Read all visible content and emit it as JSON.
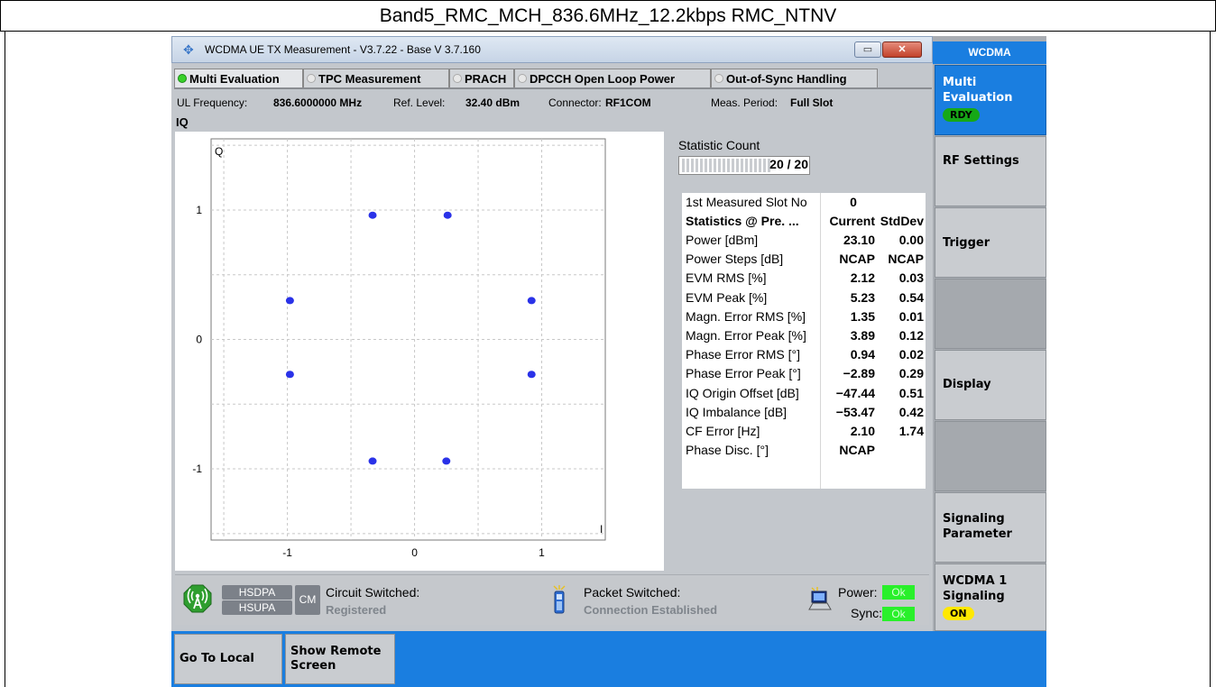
{
  "caption": "Band5_RMC_MCH_836.6MHz_12.2kbps RMC_NTNV",
  "window": {
    "title": "WCDMA UE TX Measurement  - V3.7.22 - Base V 3.7.160",
    "minimize": "▭",
    "close": "✕"
  },
  "tabs": [
    {
      "label": "Multi Evaluation",
      "active": true
    },
    {
      "label": "TPC Measurement",
      "active": false
    },
    {
      "label": "PRACH",
      "active": false
    },
    {
      "label": "DPCCH Open Loop Power",
      "active": false
    },
    {
      "label": "Out-of-Sync Handling",
      "active": false
    }
  ],
  "info": {
    "ul_freq_label": "UL Frequency:",
    "ul_freq_value": "836.6000000 MHz",
    "ref_level_label": "Ref. Level:",
    "ref_level_value": "32.40 dBm",
    "connector_label": "Connector:",
    "connector_value": "RF1COM",
    "meas_period_label": "Meas. Period:",
    "meas_period_value": "Full Slot"
  },
  "section_label": "IQ",
  "chart_data": {
    "type": "scatter",
    "ylabel": "Q",
    "xlabel": "I",
    "xticks": [
      "-1",
      "0",
      "1"
    ],
    "yticks": [
      "1",
      "0",
      "-1"
    ],
    "xlim": [
      -1.6,
      1.5
    ],
    "ylim": [
      -1.55,
      1.55
    ],
    "grid": true,
    "color": "#2a32e8",
    "points": [
      {
        "x": -0.33,
        "y": 0.96
      },
      {
        "x": 0.26,
        "y": 0.96
      },
      {
        "x": -0.98,
        "y": 0.3
      },
      {
        "x": 0.92,
        "y": 0.3
      },
      {
        "x": -0.98,
        "y": -0.27
      },
      {
        "x": 0.92,
        "y": -0.27
      },
      {
        "x": -0.33,
        "y": -0.94
      },
      {
        "x": 0.25,
        "y": -0.94
      }
    ]
  },
  "statistic": {
    "label": "Statistic Count",
    "value": "20 / 20"
  },
  "results": {
    "first_slot_label": "1st Measured Slot No",
    "first_slot_value": "0",
    "header": {
      "label": "Statistics @ Pre. ...",
      "current": "Current",
      "stddev": "StdDev"
    },
    "rows": [
      {
        "label": "Power [dBm]",
        "current": "23.10",
        "stddev": "0.00"
      },
      {
        "label": "Power Steps [dB]",
        "current": "NCAP",
        "stddev": "NCAP"
      },
      {
        "label": "EVM RMS [%]",
        "current": "2.12",
        "stddev": "0.03"
      },
      {
        "label": "EVM Peak [%]",
        "current": "5.23",
        "stddev": "0.54"
      },
      {
        "label": "Magn. Error RMS [%]",
        "current": "1.35",
        "stddev": "0.01"
      },
      {
        "label": "Magn. Error Peak [%]",
        "current": "3.89",
        "stddev": "0.12"
      },
      {
        "label": "Phase Error RMS [°]",
        "current": "0.94",
        "stddev": "0.02"
      },
      {
        "label": "Phase Error Peak [°]",
        "current": "−2.89",
        "stddev": "0.29"
      },
      {
        "label": "IQ Origin Offset [dB]",
        "current": "−47.44",
        "stddev": "0.51"
      },
      {
        "label": "IQ Imbalance [dB]",
        "current": "−53.47",
        "stddev": "0.42"
      },
      {
        "label": "CF Error [Hz]",
        "current": "2.10",
        "stddev": "1.74"
      },
      {
        "label": "Phase Disc. [°]",
        "current": "NCAP",
        "stddev": ""
      }
    ]
  },
  "status": {
    "hsdpa": "HSDPA",
    "hsupa": "HSUPA",
    "cm": "CM",
    "circuit_label": "Circuit Switched:",
    "circuit_value": "Registered",
    "packet_label": "Packet Switched:",
    "packet_value": "Connection Established",
    "power_label": "Power:",
    "power_value": "Ok",
    "sync_label": "Sync:",
    "sync_value": "Ok"
  },
  "sidebar": {
    "header": "WCDMA",
    "multi_eval": "Multi Evaluation",
    "multi_eval_badge": "RDY",
    "rf_settings": "RF Settings",
    "trigger": "Trigger",
    "display": "Display",
    "signaling_param": "Signaling Parameter",
    "wcdma_signaling": "WCDMA 1 Signaling",
    "wcdma_badge": "ON"
  },
  "bottom": {
    "go_to_local": "Go To Local",
    "show_remote": "Show Remote Screen"
  }
}
